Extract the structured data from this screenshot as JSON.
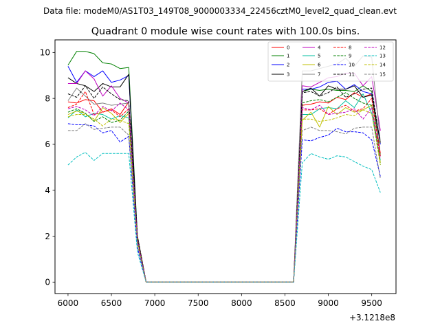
{
  "figure": {
    "suptitle": "Data file: modeM0/AS1T03_149T08_9000003334_22456cztM0_level2_quad_clean.evt",
    "title": "Quadrant 0 module wise count rates with 100.0s bins.",
    "x_offset_label": "+3.1218e8"
  },
  "chart_data": {
    "type": "line",
    "title": "Quadrant 0 module wise count rates with 100.0s bins.",
    "xlabel": "",
    "ylabel": "",
    "xlim": [
      5850,
      9780
    ],
    "ylim": [
      -0.5,
      10.55
    ],
    "x_offset": "+3.1218e8",
    "xticks": [
      6000,
      6500,
      7000,
      7500,
      8000,
      8500,
      9000,
      9500
    ],
    "yticks": [
      0,
      2,
      4,
      6,
      8,
      10
    ],
    "grid": false,
    "legend": {
      "position": "top-right",
      "ncol": 4
    },
    "x": [
      6000,
      6100,
      6200,
      6300,
      6400,
      6500,
      6600,
      6700,
      6800,
      6900,
      7000,
      7100,
      7200,
      7300,
      7400,
      7500,
      7600,
      7700,
      7800,
      7900,
      8000,
      8100,
      8200,
      8300,
      8400,
      8500,
      8600,
      8700,
      8800,
      8900,
      9000,
      9100,
      9200,
      9300,
      9400,
      9500,
      9600
    ],
    "series": [
      {
        "name": "0",
        "color": "#ff0000",
        "dash": "solid",
        "values": [
          7.85,
          7.8,
          7.95,
          7.9,
          7.4,
          7.55,
          7.3,
          7.85,
          2.0,
          0,
          0,
          0,
          0,
          0,
          0,
          0,
          0,
          0,
          0,
          0,
          0,
          0,
          0,
          0,
          0,
          0,
          0,
          7.7,
          7.75,
          7.85,
          7.8,
          8.05,
          7.95,
          8.25,
          8.05,
          8.2,
          5.6
        ]
      },
      {
        "name": "1",
        "color": "#008000",
        "dash": "solid",
        "values": [
          9.45,
          10.05,
          10.05,
          9.95,
          9.55,
          9.5,
          9.3,
          9.35,
          2.0,
          0,
          0,
          0,
          0,
          0,
          0,
          0,
          0,
          0,
          0,
          0,
          0,
          0,
          0,
          0,
          0,
          0,
          0,
          8.3,
          8.4,
          8.35,
          8.4,
          8.35,
          8.35,
          8.3,
          8.55,
          8.3,
          5.5
        ]
      },
      {
        "name": "2",
        "color": "#0000ff",
        "dash": "solid",
        "values": [
          9.4,
          8.7,
          9.2,
          8.95,
          9.2,
          8.7,
          8.8,
          9.0,
          1.9,
          0,
          0,
          0,
          0,
          0,
          0,
          0,
          0,
          0,
          0,
          0,
          0,
          0,
          0,
          0,
          0,
          0,
          0,
          8.4,
          8.4,
          8.5,
          8.7,
          8.75,
          8.4,
          8.6,
          8.3,
          8.2,
          6.0
        ]
      },
      {
        "name": "3",
        "color": "#000000",
        "dash": "solid",
        "values": [
          8.9,
          8.65,
          8.55,
          8.3,
          8.65,
          8.5,
          8.5,
          9.05,
          1.9,
          0,
          0,
          0,
          0,
          0,
          0,
          0,
          0,
          0,
          0,
          0,
          0,
          0,
          0,
          0,
          0,
          0,
          0,
          8.3,
          8.45,
          8.1,
          8.55,
          8.4,
          8.4,
          8.55,
          8.05,
          8.15,
          6.1
        ]
      },
      {
        "name": "4",
        "color": "#bf00bf",
        "dash": "solid",
        "values": [
          8.65,
          8.65,
          9.2,
          8.85,
          8.1,
          8.55,
          8.0,
          7.8,
          1.9,
          0,
          0,
          0,
          0,
          0,
          0,
          0,
          0,
          0,
          0,
          0,
          0,
          0,
          0,
          0,
          0,
          0,
          0,
          8.55,
          8.5,
          8.7,
          8.9,
          8.95,
          9.1,
          9.1,
          8.55,
          8.95,
          6.6
        ]
      },
      {
        "name": "5",
        "color": "#00bfa0",
        "dash": "solid",
        "values": [
          7.15,
          7.5,
          7.2,
          7.35,
          7.3,
          7.1,
          7.25,
          7.15,
          1.8,
          0,
          0,
          0,
          0,
          0,
          0,
          0,
          0,
          0,
          0,
          0,
          0,
          0,
          0,
          0,
          0,
          0,
          0,
          7.3,
          7.3,
          7.55,
          7.6,
          7.55,
          7.9,
          7.6,
          8.2,
          7.35,
          5.3
        ]
      },
      {
        "name": "6",
        "color": "#bfbf00",
        "dash": "solid",
        "values": [
          7.3,
          7.45,
          7.35,
          7.0,
          7.6,
          7.35,
          6.95,
          7.35,
          1.8,
          0,
          0,
          0,
          0,
          0,
          0,
          0,
          0,
          0,
          0,
          0,
          0,
          0,
          0,
          0,
          0,
          0,
          0,
          7.05,
          7.4,
          6.75,
          7.65,
          7.3,
          7.6,
          7.4,
          7.5,
          7.7,
          5.2
        ]
      },
      {
        "name": "7",
        "color": "#808080",
        "dash": "solid",
        "values": [
          7.9,
          8.45,
          8.1,
          7.75,
          7.8,
          7.7,
          7.75,
          7.8,
          1.8,
          0,
          0,
          0,
          0,
          0,
          0,
          0,
          0,
          0,
          0,
          0,
          0,
          0,
          0,
          0,
          0,
          0,
          0,
          9.2,
          9.2,
          9.3,
          9.4,
          9.5,
          9.75,
          9.4,
          9.85,
          9.8,
          6.1
        ]
      },
      {
        "name": "8",
        "color": "#ff0000",
        "dash": "dashed",
        "values": [
          7.6,
          7.75,
          8.3,
          7.3,
          7.4,
          7.5,
          7.2,
          7.55,
          1.8,
          0,
          0,
          0,
          0,
          0,
          0,
          0,
          0,
          0,
          0,
          0,
          0,
          0,
          0,
          0,
          0,
          0,
          0,
          7.5,
          7.5,
          7.55,
          7.3,
          7.55,
          7.7,
          7.45,
          7.55,
          8.0,
          5.5
        ]
      },
      {
        "name": "9",
        "color": "#008000",
        "dash": "dashed",
        "values": [
          7.4,
          7.55,
          7.35,
          7.0,
          7.2,
          6.95,
          7.05,
          7.45,
          1.8,
          0,
          0,
          0,
          0,
          0,
          0,
          0,
          0,
          0,
          0,
          0,
          0,
          0,
          0,
          0,
          0,
          0,
          0,
          7.8,
          7.9,
          7.95,
          7.85,
          8.05,
          8.25,
          8.0,
          7.8,
          7.7,
          5.1
        ]
      },
      {
        "name": "10",
        "color": "#0000ff",
        "dash": "dashed",
        "values": [
          6.9,
          6.85,
          6.85,
          6.8,
          6.5,
          6.6,
          6.1,
          6.35,
          1.5,
          0,
          0,
          0,
          0,
          0,
          0,
          0,
          0,
          0,
          0,
          0,
          0,
          0,
          0,
          0,
          0,
          0,
          0,
          6.2,
          6.15,
          6.3,
          6.4,
          6.7,
          6.55,
          6.55,
          6.5,
          6.2,
          4.6
        ]
      },
      {
        "name": "11",
        "color": "#000000",
        "dash": "dashed",
        "values": [
          8.2,
          8.05,
          8.55,
          8.0,
          8.5,
          8.2,
          7.95,
          7.9,
          2.0,
          0,
          0,
          0,
          0,
          0,
          0,
          0,
          0,
          0,
          0,
          0,
          0,
          0,
          0,
          0,
          0,
          0,
          0,
          8.25,
          8.3,
          8.1,
          8.25,
          8.5,
          8.05,
          8.2,
          8.4,
          8.45,
          6.0
        ]
      },
      {
        "name": "12",
        "color": "#bf00bf",
        "dash": "dashed",
        "values": [
          7.55,
          7.65,
          7.5,
          7.25,
          7.65,
          7.45,
          7.8,
          7.5,
          1.8,
          0,
          0,
          0,
          0,
          0,
          0,
          0,
          0,
          0,
          0,
          0,
          0,
          0,
          0,
          0,
          0,
          0,
          0,
          7.6,
          7.5,
          7.7,
          7.3,
          7.35,
          7.4,
          7.55,
          7.1,
          7.6,
          5.4
        ]
      },
      {
        "name": "13",
        "color": "#00bfbf",
        "dash": "dashed",
        "values": [
          5.1,
          5.45,
          5.65,
          5.3,
          5.6,
          5.6,
          5.6,
          5.6,
          1.3,
          0,
          0,
          0,
          0,
          0,
          0,
          0,
          0,
          0,
          0,
          0,
          0,
          0,
          0,
          0,
          0,
          0,
          0,
          5.2,
          5.6,
          5.45,
          5.35,
          5.5,
          5.45,
          5.25,
          5.05,
          4.9,
          3.9
        ]
      },
      {
        "name": "14",
        "color": "#bfbf00",
        "dash": "dashed",
        "values": [
          7.2,
          7.3,
          7.3,
          7.1,
          6.8,
          7.1,
          7.05,
          6.9,
          1.7,
          0,
          0,
          0,
          0,
          0,
          0,
          0,
          0,
          0,
          0,
          0,
          0,
          0,
          0,
          0,
          0,
          0,
          0,
          7.1,
          7.1,
          7.0,
          7.05,
          7.15,
          7.3,
          7.25,
          7.5,
          7.35,
          5.1
        ]
      },
      {
        "name": "15",
        "color": "#808080",
        "dash": "dashed",
        "values": [
          6.6,
          6.6,
          6.9,
          6.65,
          6.7,
          6.75,
          6.75,
          6.4,
          1.6,
          0,
          0,
          0,
          0,
          0,
          0,
          0,
          0,
          0,
          0,
          0,
          0,
          0,
          0,
          0,
          0,
          0,
          0,
          6.6,
          6.75,
          6.6,
          6.6,
          6.55,
          6.45,
          6.7,
          6.75,
          6.75,
          4.5
        ]
      }
    ]
  }
}
